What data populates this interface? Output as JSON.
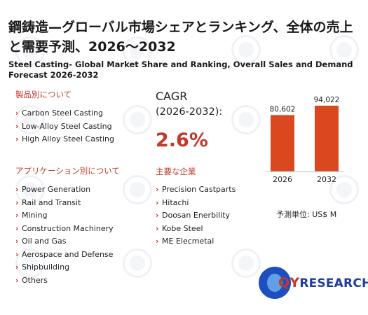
{
  "header": {
    "title": "鋼鋳造—グローバル市場シェアとランキング、全体の売上と需要予測、2026～2032",
    "subtitle": "Steel Casting- Global Market Share and Ranking, Overall Sales and Demand Forecast 2026-2032"
  },
  "product_section": {
    "heading": "製品別について",
    "items": [
      "Carbon Steel Casting",
      "Low-Alloy Steel Casting",
      "High Alloy Steel Casting"
    ]
  },
  "application_section": {
    "heading": "アプリケーション別について",
    "items": [
      "Power Generation",
      "Rail and Transit",
      "Mining",
      "Construction Machinery",
      "Oil and Gas",
      "Aerospace and Defense",
      "Shipbuilding",
      "Others"
    ]
  },
  "cagr": {
    "label": "CAGR",
    "period": "(2026-2032):",
    "value": "2.6%"
  },
  "companies_section": {
    "heading": "主要な企業",
    "items": [
      "Precision Castparts",
      "Hitachi",
      "Doosan Enerbility",
      "Kobe Steel",
      "ME Elecmetal"
    ]
  },
  "chart_data": {
    "type": "bar",
    "categories": [
      "2026",
      "2032"
    ],
    "values": [
      80602,
      94022
    ],
    "value_labels": [
      "80,602",
      "94,022"
    ],
    "bar_color": "#d9481f",
    "ylim": [
      0,
      100000
    ]
  },
  "unit_label": "予測単位:  US$ M",
  "logo": {
    "prefix": "QY",
    "suffix": "RESEARCH"
  },
  "colors": {
    "accent": "#c0392b",
    "bar": "#d9481f",
    "brand_blue": "#1e3d9e"
  }
}
